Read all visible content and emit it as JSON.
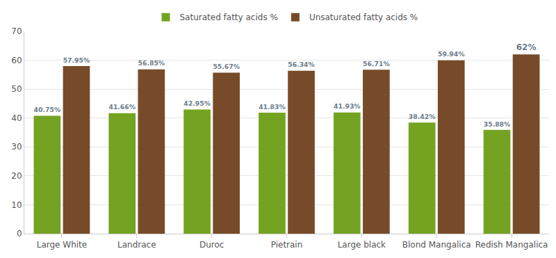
{
  "chart_data": {
    "type": "bar",
    "categories": [
      "Large White",
      "Landrace",
      "Duroc",
      "Pietrain",
      "Large black",
      "Blond Mangalica",
      "Redish Mangalica"
    ],
    "series": [
      {
        "name": "Saturated fatty acids %",
        "color": "#74a322",
        "values": [
          40.75,
          41.66,
          42.95,
          41.83,
          41.93,
          38.42,
          35.88
        ],
        "value_labels": [
          "40.75%",
          "41.66%",
          "42.95%",
          "41.83%",
          "41.93%",
          "38.42%",
          "35.88%"
        ]
      },
      {
        "name": "Unsaturated fatty acids %",
        "color": "#774b29",
        "values": [
          57.95,
          56.85,
          55.67,
          56.34,
          56.71,
          59.94,
          62
        ],
        "value_labels": [
          "57.95%",
          "56.85%",
          "55.67%",
          "56.34%",
          "56.71%",
          "59.94%",
          "62%"
        ]
      }
    ],
    "ylim": [
      0,
      70
    ],
    "yticks": [
      0,
      10,
      20,
      30,
      40,
      50,
      60,
      70
    ],
    "grid": true,
    "legend": "top",
    "data_labels": true
  }
}
